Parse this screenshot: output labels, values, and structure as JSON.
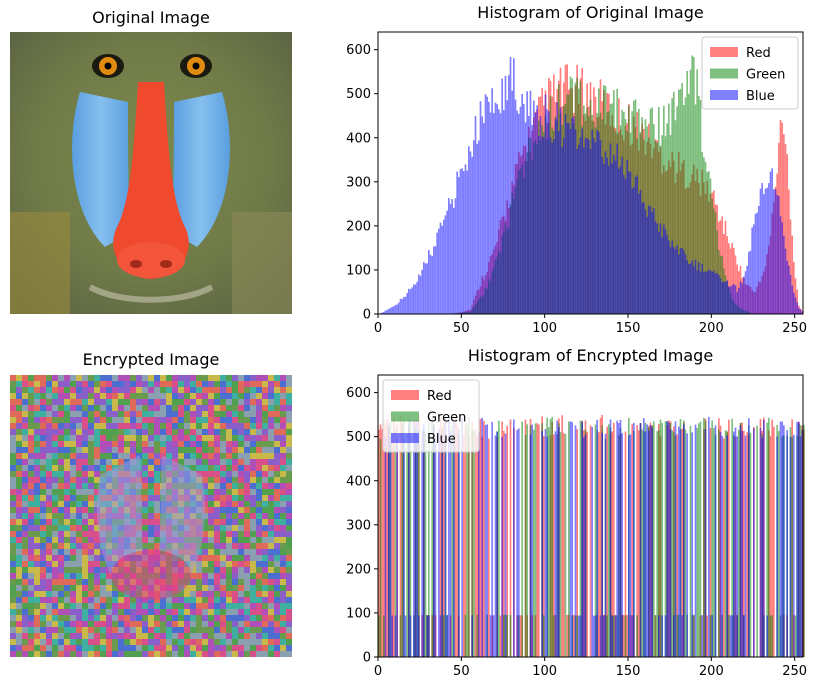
{
  "images": [
    {
      "title": "Original Image"
    },
    {
      "title": "Encrypted Image"
    }
  ],
  "chart_data": [
    {
      "type": "bar",
      "title": "Histogram of Original Image",
      "xlim": [
        0,
        255
      ],
      "ylim": [
        0,
        640
      ],
      "xticks": [
        0,
        50,
        100,
        150,
        200,
        250
      ],
      "yticks": [
        0,
        100,
        200,
        300,
        400,
        500,
        600
      ],
      "legend_position": "top-right",
      "series": [
        {
          "name": "Red",
          "color": "#ff0000",
          "alpha": 0.5,
          "points": [
            [
              0,
              0
            ],
            [
              20,
              0
            ],
            [
              35,
              0
            ],
            [
              45,
              0
            ],
            [
              55,
              10
            ],
            [
              62,
              80
            ],
            [
              70,
              150
            ],
            [
              78,
              260
            ],
            [
              86,
              360
            ],
            [
              94,
              430
            ],
            [
              100,
              480
            ],
            [
              106,
              500
            ],
            [
              112,
              510
            ],
            [
              120,
              505
            ],
            [
              128,
              490
            ],
            [
              136,
              470
            ],
            [
              144,
              445
            ],
            [
              152,
              430
            ],
            [
              160,
              400
            ],
            [
              170,
              360
            ],
            [
              180,
              330
            ],
            [
              190,
              310
            ],
            [
              200,
              270
            ],
            [
              205,
              220
            ],
            [
              210,
              170
            ],
            [
              215,
              120
            ],
            [
              220,
              70
            ],
            [
              225,
              50
            ],
            [
              230,
              80
            ],
            [
              234,
              150
            ],
            [
              238,
              280
            ],
            [
              241,
              420
            ],
            [
              243,
              450
            ],
            [
              246,
              300
            ],
            [
              249,
              120
            ],
            [
              252,
              20
            ],
            [
              255,
              0
            ]
          ]
        },
        {
          "name": "Green",
          "color": "#008000",
          "alpha": 0.5,
          "points": [
            [
              0,
              0
            ],
            [
              40,
              0
            ],
            [
              55,
              5
            ],
            [
              65,
              60
            ],
            [
              75,
              180
            ],
            [
              85,
              320
            ],
            [
              95,
              420
            ],
            [
              102,
              450
            ],
            [
              110,
              480
            ],
            [
              120,
              490
            ],
            [
              130,
              470
            ],
            [
              140,
              460
            ],
            [
              150,
              460
            ],
            [
              160,
              440
            ],
            [
              170,
              430
            ],
            [
              178,
              460
            ],
            [
              185,
              520
            ],
            [
              188,
              570
            ],
            [
              191,
              520
            ],
            [
              194,
              400
            ],
            [
              198,
              330
            ],
            [
              203,
              180
            ],
            [
              208,
              80
            ],
            [
              212,
              30
            ],
            [
              218,
              10
            ],
            [
              225,
              0
            ],
            [
              255,
              0
            ]
          ]
        },
        {
          "name": "Blue",
          "color": "#0000ff",
          "alpha": 0.5,
          "points": [
            [
              0,
              0
            ],
            [
              3,
              5
            ],
            [
              10,
              20
            ],
            [
              20,
              60
            ],
            [
              30,
              130
            ],
            [
              40,
              220
            ],
            [
              50,
              320
            ],
            [
              58,
              420
            ],
            [
              66,
              480
            ],
            [
              72,
              500
            ],
            [
              80,
              540
            ],
            [
              86,
              500
            ],
            [
              92,
              470
            ],
            [
              98,
              450
            ],
            [
              105,
              440
            ],
            [
              112,
              420
            ],
            [
              120,
              400
            ],
            [
              130,
              380
            ],
            [
              140,
              360
            ],
            [
              150,
              320
            ],
            [
              160,
              250
            ],
            [
              170,
              190
            ],
            [
              180,
              140
            ],
            [
              190,
              110
            ],
            [
              200,
              90
            ],
            [
              210,
              70
            ],
            [
              215,
              55
            ],
            [
              220,
              95
            ],
            [
              225,
              200
            ],
            [
              230,
              270
            ],
            [
              233,
              320
            ],
            [
              236,
              300
            ],
            [
              240,
              250
            ],
            [
              244,
              150
            ],
            [
              248,
              60
            ],
            [
              252,
              15
            ],
            [
              255,
              0
            ]
          ]
        }
      ]
    },
    {
      "type": "bar",
      "title": "Histogram of Encrypted Image",
      "xlim": [
        0,
        255
      ],
      "ylim": [
        0,
        640
      ],
      "xticks": [
        0,
        50,
        100,
        150,
        200,
        250
      ],
      "yticks": [
        0,
        100,
        200,
        300,
        400,
        500,
        600
      ],
      "legend_position": "top-left",
      "series": [
        {
          "name": "Red",
          "color": "#ff0000",
          "alpha": 0.5,
          "points": [
            [
              0,
              480
            ],
            [
              64,
              470
            ],
            [
              128,
              480
            ],
            [
              192,
              470
            ],
            [
              255,
              480
            ]
          ]
        },
        {
          "name": "Green",
          "color": "#008000",
          "alpha": 0.5,
          "points": [
            [
              0,
              470
            ],
            [
              64,
              480
            ],
            [
              128,
              470
            ],
            [
              192,
              480
            ],
            [
              255,
              470
            ]
          ]
        },
        {
          "name": "Blue",
          "color": "#0000ff",
          "alpha": 0.5,
          "points": [
            [
              0,
              470
            ],
            [
              64,
              475
            ],
            [
              128,
              470
            ],
            [
              192,
              475
            ],
            [
              255,
              470
            ]
          ]
        }
      ]
    }
  ]
}
